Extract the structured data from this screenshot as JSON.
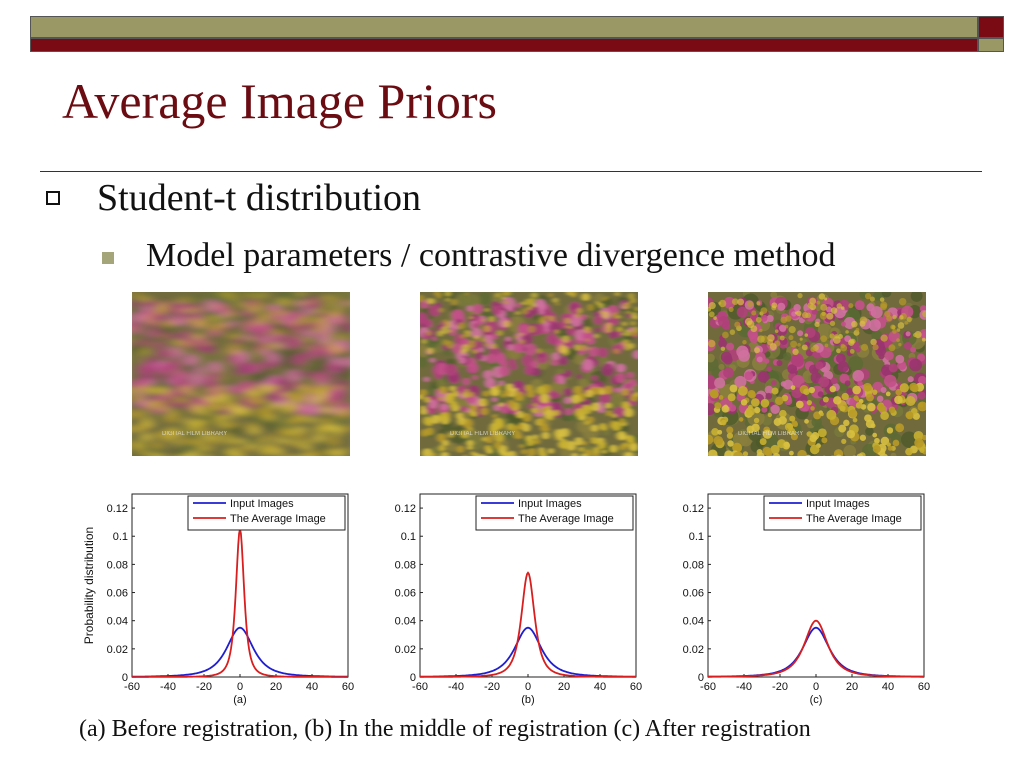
{
  "slide": {
    "title": "Average Image Priors",
    "bullet1": "Student-t distribution",
    "bullet2": "Model parameters / contrastive divergence method",
    "caption": "(a) Before registration, (b) In the middle of registration (c) After registration"
  },
  "colors": {
    "title": "#6b0b12",
    "band_olive": "#9a9966",
    "band_dark": "#7a0a14",
    "input_series": "#1f1fd0",
    "average_series": "#d81e1e"
  },
  "photos": [
    {
      "label": "blurred flower field photo (a)",
      "blur": 6,
      "watermark": "DIGITAL FILM LIBRARY"
    },
    {
      "label": "partially blurred flower field photo (b)",
      "blur": 2.5,
      "watermark": "DIGITAL FILM LIBRARY"
    },
    {
      "label": "sharp flower field photo (c)",
      "blur": 0,
      "watermark": "DIGITAL FILM LIBRARY"
    }
  ],
  "chart_data": [
    {
      "type": "line",
      "xlabel": "(a)",
      "ylabel": "Probability distribution",
      "xlim": [
        -60,
        60
      ],
      "ylim": [
        0,
        0.13
      ],
      "xticks": [
        "-60",
        "-40",
        "-20",
        "0",
        "20",
        "40",
        "60"
      ],
      "yticks": [
        "0",
        "0.02",
        "0.04",
        "0.06",
        "0.08",
        "0.1",
        "0.12"
      ],
      "legend_position": "top-right",
      "series": [
        {
          "name": "Input Images",
          "peak": 0.035,
          "width": 8
        },
        {
          "name": "The Average Image",
          "peak": 0.105,
          "width": 2.5
        }
      ]
    },
    {
      "type": "line",
      "xlabel": "(b)",
      "ylabel": "",
      "xlim": [
        -60,
        60
      ],
      "ylim": [
        0,
        0.13
      ],
      "xticks": [
        "-60",
        "-40",
        "-20",
        "0",
        "20",
        "40",
        "60"
      ],
      "yticks": [
        "0",
        "0.02",
        "0.04",
        "0.06",
        "0.08",
        "0.1",
        "0.12"
      ],
      "legend_position": "top-right",
      "series": [
        {
          "name": "Input Images",
          "peak": 0.035,
          "width": 8
        },
        {
          "name": "The Average Image",
          "peak": 0.074,
          "width": 4
        }
      ]
    },
    {
      "type": "line",
      "xlabel": "(c)",
      "ylabel": "",
      "xlim": [
        -60,
        60
      ],
      "ylim": [
        0,
        0.13
      ],
      "xticks": [
        "-60",
        "-40",
        "-20",
        "0",
        "20",
        "40",
        "60"
      ],
      "yticks": [
        "0",
        "0.02",
        "0.04",
        "0.06",
        "0.08",
        "0.1",
        "0.12"
      ],
      "legend_position": "top-right",
      "series": [
        {
          "name": "Input Images",
          "peak": 0.035,
          "width": 8
        },
        {
          "name": "The Average Image",
          "peak": 0.04,
          "width": 7
        }
      ]
    }
  ]
}
